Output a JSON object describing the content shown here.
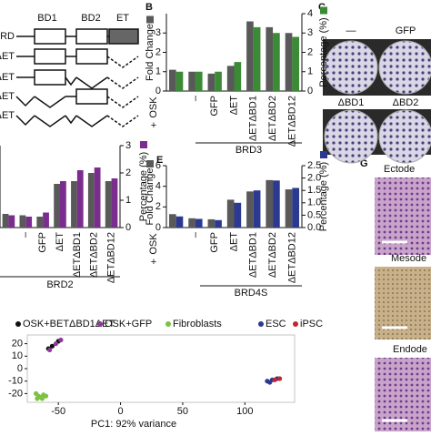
{
  "chart_data": [
    {
      "type": "bar",
      "group_label": "BRD3",
      "row_label": "OSK",
      "row_sign": "+",
      "categories": [
        null,
        "–",
        "GFP",
        "ΔET",
        "ΔETΔBD1",
        "ΔETΔBD2",
        "ΔETΔBD12"
      ],
      "series": [
        {
          "name": "Fold Change",
          "color": "#595959",
          "values": [
            1.1,
            1.0,
            0.9,
            1.3,
            3.6,
            3.3,
            3.0
          ]
        },
        {
          "name": "Percentage (%)",
          "color": "#3a8a36",
          "axis": "y2",
          "values": [
            1.0,
            1.0,
            1.0,
            1.5,
            3.3,
            3.0,
            2.8
          ]
        }
      ],
      "ylim": [
        0,
        4
      ],
      "yticks": [
        0,
        1,
        2,
        3
      ],
      "y2lim": [
        0,
        4
      ],
      "y2ticks": [
        0,
        1,
        2,
        3,
        4
      ]
    },
    {
      "type": "bar",
      "group_label": "BRD2",
      "categories": [
        null,
        "–",
        "GFP",
        "ΔET",
        "ΔETΔBD1",
        "ΔETΔBD2",
        "ΔETΔBD12"
      ],
      "series": [
        {
          "color": "#595959",
          "values": [
            0.5,
            0.45,
            0.4,
            1.6,
            1.7,
            2.0,
            1.7
          ]
        },
        {
          "name": "Percentage (%)",
          "color": "#7b2d8e",
          "axis": "y2",
          "values": [
            0.45,
            0.4,
            0.55,
            1.7,
            2.1,
            2.2,
            1.8
          ]
        }
      ],
      "ylim": [
        0,
        3
      ],
      "y2lim": [
        0,
        3
      ],
      "y2ticks": [
        0,
        1,
        2,
        3
      ]
    },
    {
      "type": "bar",
      "group_label": "BRD4S",
      "row_label": "OSK",
      "row_sign": "+",
      "categories": [
        null,
        "–",
        "GFP",
        "ΔET",
        "ΔETΔBD1",
        "ΔETΔBD2",
        "ΔETΔBD12"
      ],
      "series": [
        {
          "name": "Fold Change",
          "color": "#595959",
          "values": [
            1.3,
            0.9,
            0.8,
            2.7,
            3.5,
            4.6,
            3.7
          ]
        },
        {
          "name": "Percentage (%)",
          "color": "#2b3990",
          "axis": "y2",
          "values": [
            0.45,
            0.35,
            0.3,
            1.0,
            1.5,
            1.9,
            1.6
          ]
        }
      ],
      "ylim": [
        0,
        6
      ],
      "yticks": [
        0,
        2,
        4,
        6
      ],
      "y2lim": [
        0,
        2.5
      ],
      "y2ticks": [
        {
          "value": 0,
          "label": "0.0"
        },
        {
          "value": 0.5,
          "label": "0.5"
        },
        {
          "value": 1,
          "label": "1.0"
        },
        {
          "value": 1.5,
          "label": "1.5"
        },
        {
          "value": 2,
          "label": "2.0"
        },
        {
          "value": 2.5,
          "label": "2.5"
        }
      ]
    },
    {
      "type": "scatter",
      "x_label": "PC1: 92% variance",
      "xlim": [
        -75,
        140
      ],
      "xticks": [
        -50,
        0,
        50,
        100
      ],
      "ylim": [
        -27,
        27
      ],
      "yticks": [
        -20,
        -10,
        0,
        10,
        20
      ],
      "series": [
        {
          "name": "OSK+BETΔBD1ΔET",
          "color": "#111111",
          "x": [
            -55,
            -50,
            -58
          ],
          "y": [
            18,
            22,
            16
          ]
        },
        {
          "name": "OSK+GFP",
          "color": "#8e3a9a",
          "x": [
            -52,
            -48,
            -57
          ],
          "y": [
            20,
            23,
            15
          ]
        },
        {
          "name": "Fibroblasts",
          "color": "#7cc242",
          "x": [
            -68,
            -66,
            -64,
            -62,
            -60,
            -67,
            -63
          ],
          "y": [
            -20,
            -22,
            -23,
            -21,
            -22,
            -24,
            -24
          ]
        },
        {
          "name": "ESC",
          "color": "#2b3990",
          "x": [
            118,
            120,
            122,
            126
          ],
          "y": [
            -10,
            -11,
            -9,
            -8
          ]
        },
        {
          "name": "iPSC",
          "color": "#c1272d",
          "x": [
            124,
            128
          ],
          "y": [
            -9,
            -8
          ]
        }
      ]
    }
  ],
  "diagram": {
    "domains": [
      "BD1",
      "BD2",
      "ET"
    ],
    "rows": [
      "BRD",
      "ΔET",
      "ΔET",
      "ΔET",
      "ΔET"
    ]
  },
  "panel_letters": [
    "B",
    "C",
    "E",
    "G"
  ],
  "plates": {
    "labels": [
      "—",
      "GFP",
      "ΔBD1",
      "ΔBD2"
    ]
  },
  "histology": {
    "labels": [
      "Ectode",
      "Mesode",
      "Endode"
    ]
  }
}
